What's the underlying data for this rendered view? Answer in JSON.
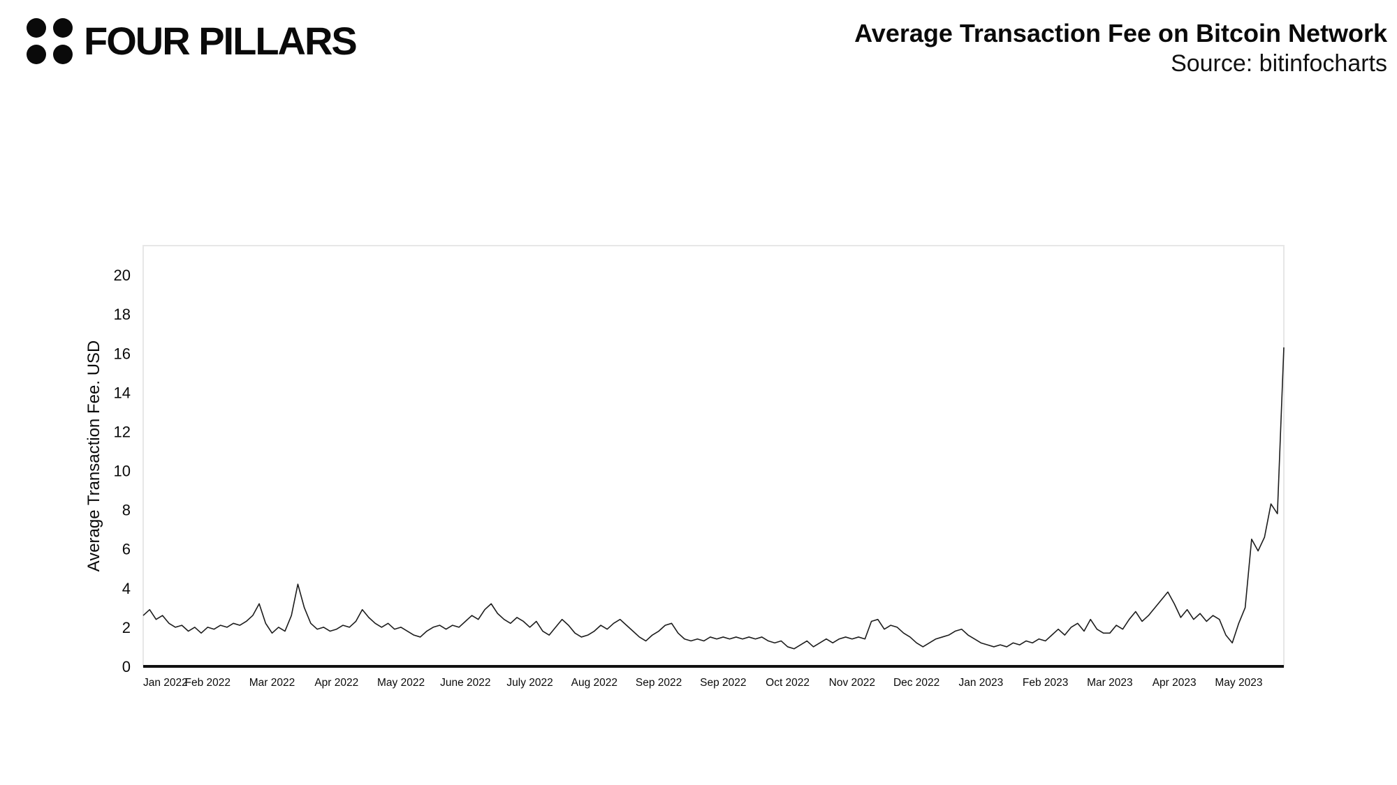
{
  "header": {
    "brand": "FOUR PILLARS",
    "logo": "four-dots-logo",
    "title": "Average Transaction Fee on Bitcoin Network",
    "source": "Source: bitinfocharts"
  },
  "chart_data": {
    "type": "line",
    "title": "Average Transaction Fee on Bitcoin Network",
    "source": "bitinfocharts",
    "ylabel": "Average Transaction  Fee. USD",
    "xlabel": "",
    "ylim": [
      0,
      21.5
    ],
    "yticks": [
      0,
      2,
      4,
      6,
      8,
      10,
      12,
      14,
      16,
      18,
      20
    ],
    "grid": false,
    "legend_position": "none",
    "line_color": "#1c1c1c",
    "axis_color": "#111111",
    "box_color": "#e7e7e7",
    "x_labels": [
      "Jan 2022",
      "Feb 2022",
      "Mar 2022",
      "Apr 2022",
      "May 2022",
      "June 2022",
      "July 2022",
      "Aug 2022",
      "Sep 2022",
      "Sep 2022",
      "Oct 2022",
      "Nov 2022",
      "Dec 2022",
      "Jan 2023",
      "Feb 2023",
      "Mar 2023",
      "Apr 2023",
      "May 2023"
    ],
    "points_per_interval": 10,
    "values": [
      2.6,
      2.9,
      2.4,
      2.6,
      2.2,
      2.0,
      2.1,
      1.8,
      2.0,
      1.7,
      2.0,
      1.9,
      2.1,
      2.0,
      2.2,
      2.1,
      2.3,
      2.6,
      3.2,
      2.2,
      1.7,
      2.0,
      1.8,
      2.6,
      4.2,
      3.0,
      2.2,
      1.9,
      2.0,
      1.8,
      1.9,
      2.1,
      2.0,
      2.3,
      2.9,
      2.5,
      2.2,
      2.0,
      2.2,
      1.9,
      2.0,
      1.8,
      1.6,
      1.5,
      1.8,
      2.0,
      2.1,
      1.9,
      2.1,
      2.0,
      2.3,
      2.6,
      2.4,
      2.9,
      3.2,
      2.7,
      2.4,
      2.2,
      2.5,
      2.3,
      2.0,
      2.3,
      1.8,
      1.6,
      2.0,
      2.4,
      2.1,
      1.7,
      1.5,
      1.6,
      1.8,
      2.1,
      1.9,
      2.2,
      2.4,
      2.1,
      1.8,
      1.5,
      1.3,
      1.6,
      1.8,
      2.1,
      2.2,
      1.7,
      1.4,
      1.3,
      1.4,
      1.3,
      1.5,
      1.4,
      1.5,
      1.4,
      1.5,
      1.4,
      1.5,
      1.4,
      1.5,
      1.3,
      1.2,
      1.3,
      1.0,
      0.9,
      1.1,
      1.3,
      1.0,
      1.2,
      1.4,
      1.2,
      1.4,
      1.5,
      1.4,
      1.5,
      1.4,
      2.3,
      2.4,
      1.9,
      2.1,
      2.0,
      1.7,
      1.5,
      1.2,
      1.0,
      1.2,
      1.4,
      1.5,
      1.6,
      1.8,
      1.9,
      1.6,
      1.4,
      1.2,
      1.1,
      1.0,
      1.1,
      1.0,
      1.2,
      1.1,
      1.3,
      1.2,
      1.4,
      1.3,
      1.6,
      1.9,
      1.6,
      2.0,
      2.2,
      1.8,
      2.4,
      1.9,
      1.7,
      1.7,
      2.1,
      1.9,
      2.4,
      2.8,
      2.3,
      2.6,
      3.0,
      3.4,
      3.8,
      3.2,
      2.5,
      2.9,
      2.4,
      2.7,
      2.3,
      2.6,
      2.4,
      1.6,
      1.2,
      2.2,
      3.0,
      6.5,
      5.9,
      6.6,
      8.3,
      7.8,
      16.3
    ]
  }
}
